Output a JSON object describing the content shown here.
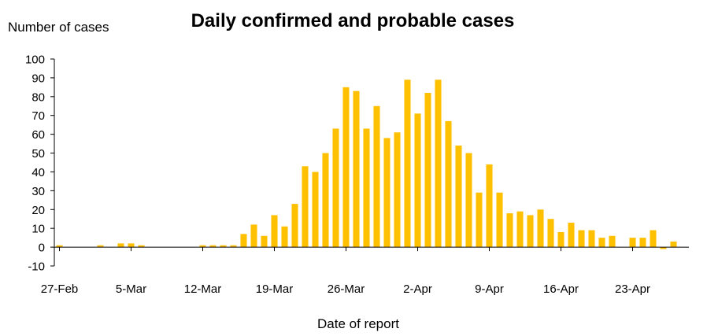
{
  "chart_data": {
    "type": "bar",
    "title": "Daily confirmed and probable cases",
    "ylabel": "Number of cases",
    "xlabel": "Date of report",
    "ylim": [
      -10,
      100
    ],
    "yticks": [
      -10,
      0,
      10,
      20,
      30,
      40,
      50,
      60,
      70,
      80,
      90,
      100
    ],
    "bar_color": "#FFC000",
    "grid": false,
    "legend": "none",
    "categories": [
      "27-Feb",
      "28-Feb",
      "29-Feb",
      "1-Mar",
      "2-Mar",
      "3-Mar",
      "4-Mar",
      "5-Mar",
      "6-Mar",
      "7-Mar",
      "8-Mar",
      "9-Mar",
      "10-Mar",
      "11-Mar",
      "12-Mar",
      "13-Mar",
      "14-Mar",
      "15-Mar",
      "16-Mar",
      "17-Mar",
      "18-Mar",
      "19-Mar",
      "20-Mar",
      "21-Mar",
      "22-Mar",
      "23-Mar",
      "24-Mar",
      "25-Mar",
      "26-Mar",
      "27-Mar",
      "28-Mar",
      "29-Mar",
      "30-Mar",
      "31-Mar",
      "1-Apr",
      "2-Apr",
      "3-Apr",
      "4-Apr",
      "5-Apr",
      "6-Apr",
      "7-Apr",
      "8-Apr",
      "9-Apr",
      "10-Apr",
      "11-Apr",
      "12-Apr",
      "13-Apr",
      "14-Apr",
      "15-Apr",
      "16-Apr",
      "17-Apr",
      "18-Apr",
      "19-Apr",
      "20-Apr",
      "21-Apr",
      "22-Apr",
      "23-Apr",
      "24-Apr",
      "25-Apr",
      "26-Apr",
      "27-Apr",
      "28-Apr"
    ],
    "values": [
      1,
      0,
      0,
      0,
      1,
      0,
      2,
      2,
      1,
      0,
      0,
      0,
      0,
      0,
      1,
      1,
      1,
      1,
      7,
      12,
      6,
      17,
      11,
      23,
      43,
      40,
      50,
      63,
      85,
      83,
      63,
      75,
      58,
      61,
      89,
      71,
      82,
      89,
      67,
      54,
      50,
      29,
      44,
      29,
      18,
      19,
      17,
      20,
      15,
      8,
      13,
      9,
      9,
      5,
      6,
      0,
      5,
      5,
      9,
      -1,
      3,
      0
    ],
    "xtick_labels": [
      "27-Feb",
      "5-Mar",
      "12-Mar",
      "19-Mar",
      "26-Mar",
      "2-Apr",
      "9-Apr",
      "16-Apr",
      "23-Apr"
    ],
    "xtick_indices": [
      0,
      7,
      14,
      21,
      28,
      35,
      42,
      49,
      56
    ]
  }
}
